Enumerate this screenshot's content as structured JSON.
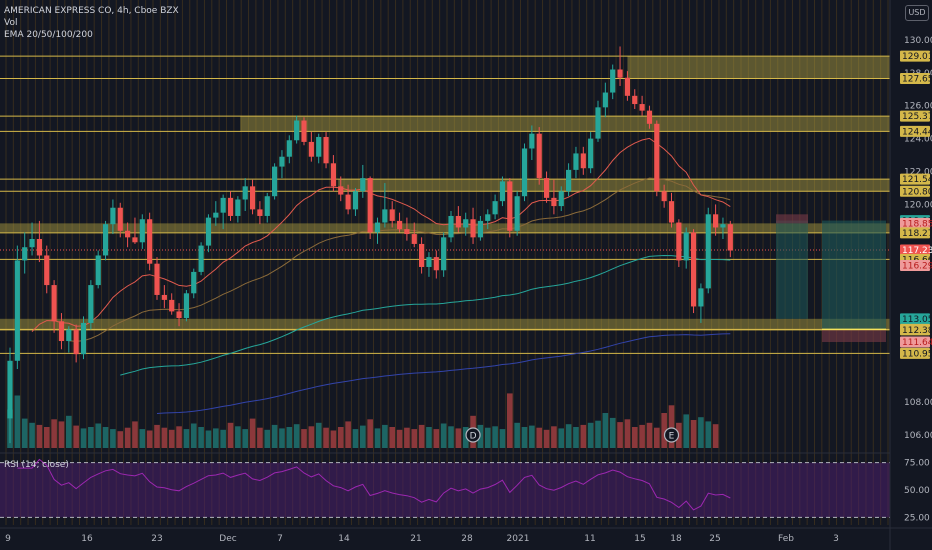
{
  "header": {
    "symbol_line": "AMERICAN EXPRESS CO, 4h, Cboe BZX",
    "vol_label": "Vol",
    "ema_label": "EMA 20/50/100/200",
    "currency": "USD"
  },
  "rsi": {
    "label": "RSI (14, close)",
    "ticks": [
      "75.00",
      "50.00",
      "25.00"
    ]
  },
  "colors": {
    "background": "#131722",
    "up": "#26a69a",
    "down": "#ef5350",
    "zone": "#b5a642",
    "level_line": "#d4b84a",
    "ema20": "#e05a4e",
    "ema50": "#8a6a3a",
    "ema100": "#26a69a",
    "ema200": "#3344aa",
    "rsi_line": "#9c27b0",
    "rsi_band": "#4a1f6b"
  },
  "chart_data": {
    "type": "candlestick",
    "title": "AMERICAN EXPRESS CO, 4h, Cboe BZX",
    "ylim": [
      105.2,
      130.6
    ],
    "y_ticks": [
      106,
      108,
      110,
      112,
      114,
      116,
      118,
      120,
      122,
      124,
      126,
      128,
      130
    ],
    "y_tick_labels": [
      "106.00",
      "108.00",
      "",
      "",
      "",
      "",
      "",
      "120.00",
      "122.00",
      "124.00",
      "126.00",
      "128.00",
      "130.00"
    ],
    "x_tick_labels": [
      "9",
      "16",
      "23",
      "Dec",
      "7",
      "14",
      "21",
      "28",
      "2021",
      "11",
      "15",
      "18",
      "25",
      "Feb",
      "3"
    ],
    "price_levels": [
      {
        "label": "129.01",
        "value": 129.01,
        "tag": "gold"
      },
      {
        "label": "127.65",
        "value": 127.65,
        "tag": "gold"
      },
      {
        "label": "125.37",
        "value": 125.37,
        "tag": "gold"
      },
      {
        "label": "124.44",
        "value": 124.44,
        "tag": "gold"
      },
      {
        "label": "121.54",
        "value": 121.54,
        "tag": "gold"
      },
      {
        "label": "120.80",
        "value": 120.8,
        "tag": "gold"
      },
      {
        "label": "119.02",
        "value": 119.02,
        "tag": "teal"
      },
      {
        "label": "118.85",
        "value": 118.85,
        "tag": "pink"
      },
      {
        "label": "118.27",
        "value": 118.27,
        "tag": "gold"
      },
      {
        "label": "117.23",
        "value": 117.23,
        "tag": "red"
      },
      {
        "label": "116.66",
        "value": 116.66,
        "tag": "gold"
      },
      {
        "label": "116.29",
        "value": 116.29,
        "tag": "pink"
      },
      {
        "label": "113.05",
        "value": 113.05,
        "tag": "teal"
      },
      {
        "label": "112.41",
        "value": 112.41,
        "tag": "gold"
      },
      {
        "label": "112.38",
        "value": 112.38,
        "tag": "gold"
      },
      {
        "label": "111.64",
        "value": 111.64,
        "tag": "pink"
      },
      {
        "label": "110.95",
        "value": 110.95,
        "tag": "gold"
      }
    ],
    "zones": [
      {
        "from": 127.65,
        "to": 129.01,
        "start": 0.705
      },
      {
        "from": 124.44,
        "to": 125.37,
        "start": 0.27
      },
      {
        "from": 120.8,
        "to": 121.54,
        "start": 0.38
      },
      {
        "from": 118.27,
        "to": 118.85,
        "start": 0.0
      },
      {
        "from": 112.41,
        "to": 113.05,
        "start": 0.0
      }
    ],
    "markers": [
      {
        "label": "D",
        "index": 63
      },
      {
        "label": "E",
        "index": 90
      }
    ],
    "rsi_ylim": [
      18,
      82
    ],
    "rsi_bands": [
      75,
      50,
      25
    ],
    "candles": [
      [
        107.0,
        111.3,
        105.5,
        110.5
      ],
      [
        110.5,
        117.5,
        110.0,
        116.6
      ],
      [
        116.6,
        118.3,
        115.8,
        117.4
      ],
      [
        117.4,
        118.9,
        116.9,
        117.9
      ],
      [
        117.9,
        119.0,
        116.5,
        116.9
      ],
      [
        116.9,
        117.5,
        114.6,
        115.1
      ],
      [
        115.1,
        115.4,
        112.2,
        112.9
      ],
      [
        112.9,
        113.4,
        111.2,
        111.7
      ],
      [
        111.7,
        112.6,
        111.0,
        112.4
      ],
      [
        112.4,
        112.7,
        110.4,
        110.9
      ],
      [
        110.9,
        113.2,
        110.6,
        112.8
      ],
      [
        112.8,
        115.4,
        112.4,
        115.1
      ],
      [
        115.1,
        117.2,
        114.9,
        116.9
      ],
      [
        116.9,
        119.0,
        116.6,
        118.8
      ],
      [
        118.8,
        120.3,
        118.2,
        119.8
      ],
      [
        119.8,
        120.1,
        118.0,
        118.4
      ],
      [
        118.4,
        118.9,
        117.4,
        118.0
      ],
      [
        118.0,
        119.2,
        117.6,
        117.7
      ],
      [
        117.7,
        119.4,
        117.3,
        119.1
      ],
      [
        119.1,
        119.5,
        116.0,
        116.4
      ],
      [
        116.4,
        116.8,
        114.2,
        114.5
      ],
      [
        114.5,
        115.1,
        113.7,
        114.2
      ],
      [
        114.2,
        114.6,
        113.3,
        113.5
      ],
      [
        113.5,
        114.0,
        112.6,
        113.1
      ],
      [
        113.1,
        114.8,
        112.9,
        114.6
      ],
      [
        114.6,
        116.1,
        114.3,
        115.9
      ],
      [
        115.9,
        117.7,
        115.7,
        117.5
      ],
      [
        117.5,
        119.4,
        117.1,
        119.2
      ],
      [
        119.2,
        120.2,
        118.7,
        119.5
      ],
      [
        119.5,
        120.6,
        118.5,
        120.4
      ],
      [
        120.4,
        120.8,
        119.0,
        119.3
      ],
      [
        119.3,
        120.5,
        118.9,
        120.3
      ],
      [
        120.3,
        121.6,
        119.6,
        121.1
      ],
      [
        121.1,
        121.5,
        119.4,
        119.7
      ],
      [
        119.7,
        120.2,
        118.8,
        119.3
      ],
      [
        119.3,
        120.7,
        118.9,
        120.5
      ],
      [
        120.5,
        122.5,
        120.3,
        122.3
      ],
      [
        122.3,
        123.3,
        121.6,
        122.9
      ],
      [
        122.9,
        124.2,
        122.5,
        123.9
      ],
      [
        123.9,
        125.4,
        123.7,
        125.1
      ],
      [
        125.1,
        125.3,
        123.6,
        123.8
      ],
      [
        123.8,
        124.4,
        122.6,
        122.9
      ],
      [
        122.9,
        124.3,
        122.5,
        124.1
      ],
      [
        124.1,
        124.4,
        122.2,
        122.5
      ],
      [
        122.5,
        123.0,
        120.8,
        121.1
      ],
      [
        121.1,
        121.7,
        120.2,
        120.6
      ],
      [
        120.6,
        121.2,
        119.4,
        119.7
      ],
      [
        119.7,
        121.0,
        119.3,
        120.8
      ],
      [
        120.8,
        122.4,
        120.4,
        121.6
      ],
      [
        121.6,
        121.7,
        117.9,
        118.3
      ],
      [
        118.3,
        119.2,
        117.6,
        118.9
      ],
      [
        118.9,
        121.3,
        118.6,
        119.7
      ],
      [
        119.7,
        120.2,
        118.6,
        119.0
      ],
      [
        119.0,
        119.5,
        118.3,
        118.5
      ],
      [
        118.5,
        119.2,
        117.8,
        118.2
      ],
      [
        118.2,
        118.9,
        117.4,
        117.6
      ],
      [
        117.6,
        118.0,
        115.8,
        116.2
      ],
      [
        116.2,
        117.1,
        115.6,
        116.8
      ],
      [
        116.8,
        117.2,
        115.5,
        116.0
      ],
      [
        116.0,
        118.3,
        115.6,
        118.0
      ],
      [
        118.0,
        119.6,
        117.7,
        119.3
      ],
      [
        119.3,
        119.9,
        118.3,
        118.6
      ],
      [
        118.6,
        119.5,
        118.1,
        119.1
      ],
      [
        119.1,
        119.8,
        117.6,
        118.0
      ],
      [
        118.0,
        119.3,
        117.8,
        119.0
      ],
      [
        119.0,
        119.7,
        118.5,
        119.4
      ],
      [
        119.4,
        120.6,
        119.1,
        120.2
      ],
      [
        120.2,
        121.7,
        119.9,
        121.4
      ],
      [
        121.4,
        121.6,
        118.0,
        118.4
      ],
      [
        118.4,
        120.8,
        118.1,
        120.5
      ],
      [
        120.5,
        123.7,
        120.2,
        123.4
      ],
      [
        123.4,
        124.8,
        122.7,
        124.3
      ],
      [
        124.3,
        124.7,
        121.2,
        121.6
      ],
      [
        121.6,
        122.0,
        120.1,
        120.4
      ],
      [
        120.4,
        121.5,
        119.4,
        119.9
      ],
      [
        119.9,
        121.1,
        119.6,
        120.8
      ],
      [
        120.8,
        122.5,
        120.5,
        122.1
      ],
      [
        122.1,
        123.5,
        121.6,
        123.1
      ],
      [
        123.1,
        123.5,
        121.8,
        122.2
      ],
      [
        122.2,
        124.4,
        121.9,
        124.0
      ],
      [
        124.0,
        126.3,
        123.8,
        125.9
      ],
      [
        125.9,
        127.4,
        125.3,
        126.8
      ],
      [
        126.8,
        128.5,
        126.4,
        128.2
      ],
      [
        128.2,
        129.6,
        127.2,
        127.7
      ],
      [
        127.7,
        128.1,
        126.3,
        126.6
      ],
      [
        126.6,
        127.0,
        125.8,
        126.1
      ],
      [
        126.1,
        126.6,
        125.4,
        125.7
      ],
      [
        125.7,
        126.0,
        124.6,
        124.9
      ],
      [
        124.9,
        125.1,
        120.5,
        120.8
      ],
      [
        120.8,
        121.2,
        119.8,
        120.2
      ],
      [
        120.2,
        120.7,
        118.6,
        118.9
      ],
      [
        118.9,
        119.1,
        116.2,
        116.6
      ],
      [
        116.6,
        118.6,
        116.1,
        118.3
      ],
      [
        118.3,
        118.5,
        113.4,
        113.8
      ],
      [
        113.8,
        115.2,
        112.8,
        114.9
      ],
      [
        114.9,
        119.8,
        114.6,
        119.4
      ],
      [
        119.4,
        120.0,
        118.1,
        118.6
      ],
      [
        118.6,
        119.2,
        117.9,
        118.8
      ],
      [
        118.8,
        119.0,
        116.8,
        117.2
      ]
    ],
    "volume": [
      0.55,
      0.75,
      0.42,
      0.36,
      0.33,
      0.3,
      0.41,
      0.38,
      0.46,
      0.32,
      0.28,
      0.3,
      0.35,
      0.3,
      0.27,
      0.24,
      0.29,
      0.38,
      0.27,
      0.25,
      0.33,
      0.29,
      0.26,
      0.31,
      0.27,
      0.35,
      0.3,
      0.25,
      0.28,
      0.26,
      0.36,
      0.31,
      0.27,
      0.42,
      0.29,
      0.26,
      0.33,
      0.28,
      0.3,
      0.34,
      0.27,
      0.31,
      0.36,
      0.29,
      0.25,
      0.3,
      0.38,
      0.27,
      0.32,
      0.41,
      0.28,
      0.33,
      0.3,
      0.26,
      0.29,
      0.27,
      0.33,
      0.3,
      0.27,
      0.35,
      0.31,
      0.28,
      0.3,
      0.46,
      0.33,
      0.29,
      0.31,
      0.27,
      0.78,
      0.36,
      0.3,
      0.32,
      0.29,
      0.26,
      0.31,
      0.28,
      0.34,
      0.3,
      0.33,
      0.36,
      0.39,
      0.5,
      0.43,
      0.37,
      0.41,
      0.3,
      0.33,
      0.36,
      0.29,
      0.5,
      0.61,
      0.36,
      0.48,
      0.4,
      0.44,
      0.38,
      0.34
    ]
  }
}
